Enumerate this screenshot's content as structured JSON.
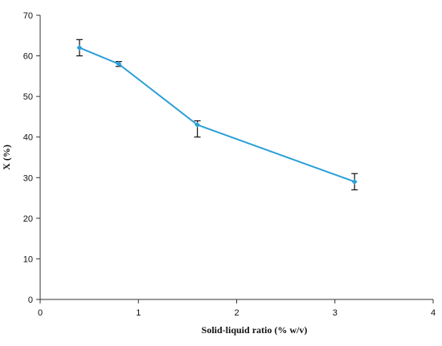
{
  "chart_data": {
    "type": "line",
    "title": "",
    "xlabel": "Solid-liquid  ratio  (% w/v)",
    "ylabel": "X (%)",
    "xlim": [
      0,
      4
    ],
    "ylim": [
      0,
      70
    ],
    "x_ticks": [
      0,
      1,
      2,
      3,
      4
    ],
    "y_ticks": [
      0,
      10,
      20,
      30,
      40,
      50,
      60,
      70
    ],
    "grid": false,
    "legend": "none",
    "line_color": "#2b9fd8",
    "series": [
      {
        "x": [
          0.4,
          0.8,
          1.6,
          3.2
        ],
        "y": [
          62,
          58,
          43,
          29
        ],
        "error_low": [
          2,
          0.6,
          3,
          2
        ],
        "error_high": [
          2,
          0.6,
          1,
          2
        ]
      }
    ]
  }
}
